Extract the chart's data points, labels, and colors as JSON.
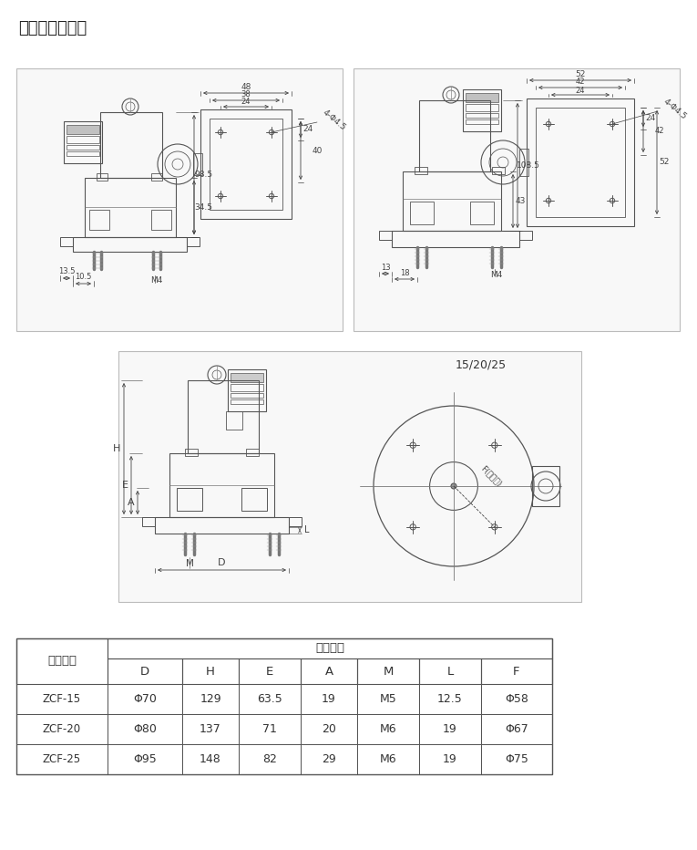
{
  "title": "结构外型尺寸图",
  "table_col1_header": "产品型号",
  "table_dim_header": "外形尺寸",
  "table_header_row2": [
    "D",
    "H",
    "E",
    "A",
    "M",
    "L",
    "F"
  ],
  "table_data": [
    [
      "ZCF-15",
      "Φ70",
      "129",
      "63.5",
      "19",
      "M5",
      "12.5",
      "Φ58"
    ],
    [
      "ZCF-20",
      "Φ80",
      "137",
      "71",
      "20",
      "M6",
      "19",
      "Φ67"
    ],
    [
      "ZCF-25",
      "Φ95",
      "148",
      "82",
      "29",
      "M6",
      "19",
      "Φ75"
    ]
  ],
  "bg_color": "#ffffff",
  "panel_bg": "#f5f5f5",
  "panel_border": "#aaaaaa",
  "line_color": "#555555",
  "dim_color": "#444444",
  "text_color": "#333333"
}
